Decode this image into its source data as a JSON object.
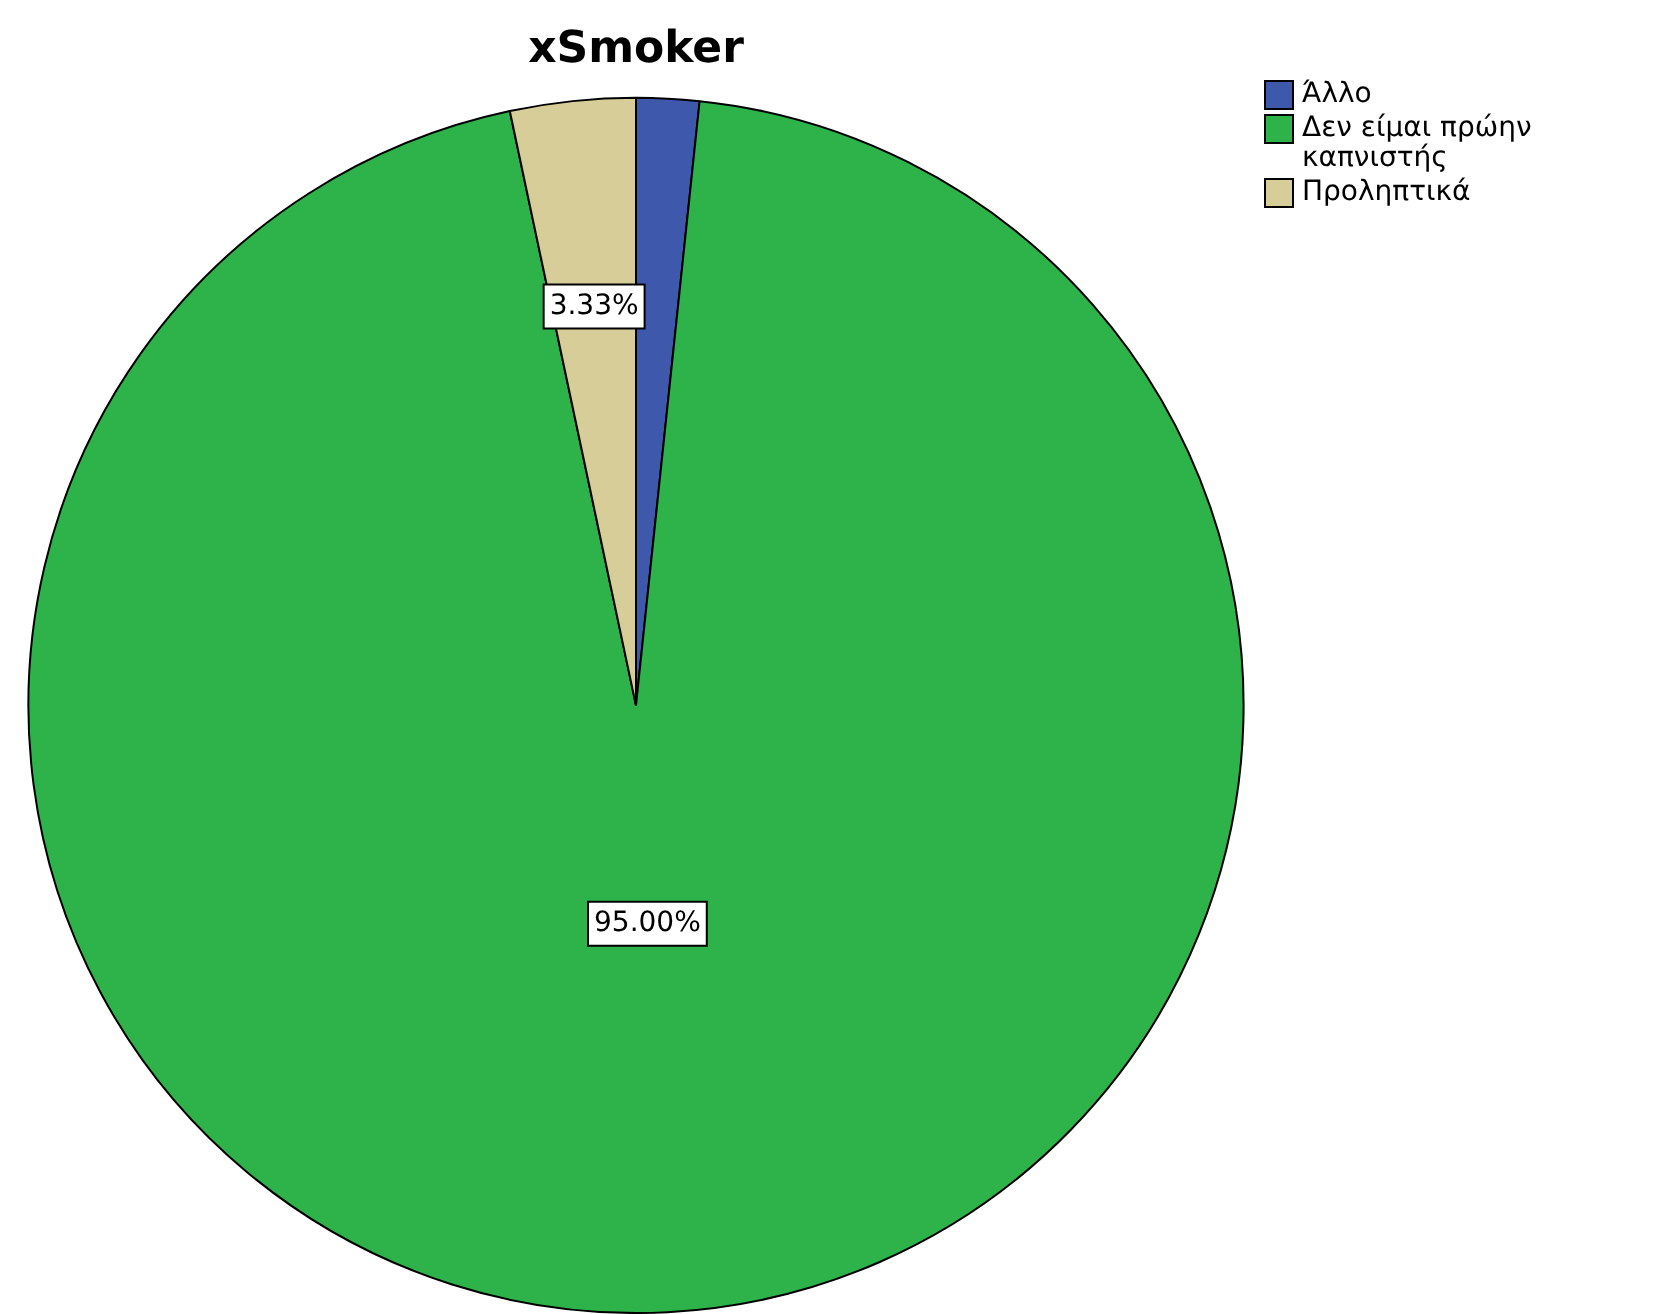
{
  "chart_data": {
    "type": "pie",
    "title": "xSmoker",
    "categories": [
      "Άλλο",
      "Δεν είμαι πρώην καπνιστής",
      "Προληπτικά"
    ],
    "values": [
      1.67,
      95.0,
      3.33
    ],
    "colors": [
      "#3e58ac",
      "#2db34a",
      "#d6cd98"
    ],
    "value_labels": [
      null,
      "95.00%",
      "3.33%"
    ],
    "legend": "top right"
  }
}
